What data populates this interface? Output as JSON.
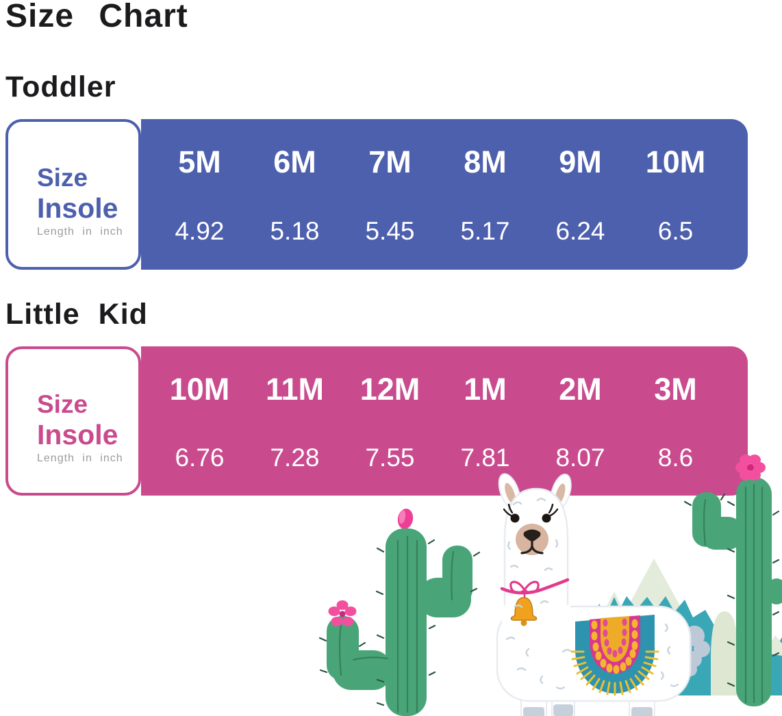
{
  "page": {
    "title": "Size Chart",
    "background": "#ffffff"
  },
  "sections": [
    {
      "id": "toddler",
      "heading": "Toddler",
      "accent": "#4d60ad",
      "label": {
        "line1": "Size",
        "line2": "Insole",
        "note": "Length in inch"
      },
      "sizes": [
        "5M",
        "6M",
        "7M",
        "8M",
        "9M",
        "10M"
      ],
      "insoles": [
        "4.92",
        "5.18",
        "5.45",
        "5.17",
        "6.24",
        "6.5"
      ]
    },
    {
      "id": "little-kid",
      "heading": "Little Kid",
      "accent": "#c94b8e",
      "label": {
        "line1": "Size",
        "line2": "Insole",
        "note": "Length in inch"
      },
      "sizes": [
        "10M",
        "11M",
        "12M",
        "1M",
        "2M",
        "3M"
      ],
      "insoles": [
        "6.76",
        "7.28",
        "7.55",
        "7.81",
        "8.07",
        "8.6"
      ]
    }
  ],
  "chart_data": [
    {
      "type": "table",
      "title": "Toddler",
      "columns": [
        "5M",
        "6M",
        "7M",
        "8M",
        "9M",
        "10M"
      ],
      "rows": [
        {
          "label": "Insole Length in inch",
          "values": [
            4.92,
            5.18,
            5.45,
            5.17,
            6.24,
            6.5
          ]
        }
      ]
    },
    {
      "type": "table",
      "title": "Little Kid",
      "columns": [
        "10M",
        "11M",
        "12M",
        "1M",
        "2M",
        "3M"
      ],
      "rows": [
        {
          "label": "Insole Length in inch",
          "values": [
            6.76,
            7.28,
            7.55,
            7.81,
            8.07,
            8.6
          ]
        }
      ]
    }
  ],
  "illustration": {
    "description": "Cartoon alpaca wearing a bell collar and patterned saddle blanket, standing before teal snow-capped mountains between two green cacti with pink flowers",
    "elements": [
      "left-cactus",
      "alpaca",
      "mountains",
      "right-cactus"
    ],
    "colors": {
      "cactus_green": "#49a578",
      "mountain_teal": "#3aa7b7",
      "snow_cap": "#e3ebdb",
      "blanket_teal": "#2e93ae",
      "blanket_pink": "#d8378d",
      "blanket_yellow": "#eeab27",
      "flower_pink": "#f2509f",
      "bell_gold": "#f0a21f",
      "collar_pink": "#e23b8e"
    }
  }
}
